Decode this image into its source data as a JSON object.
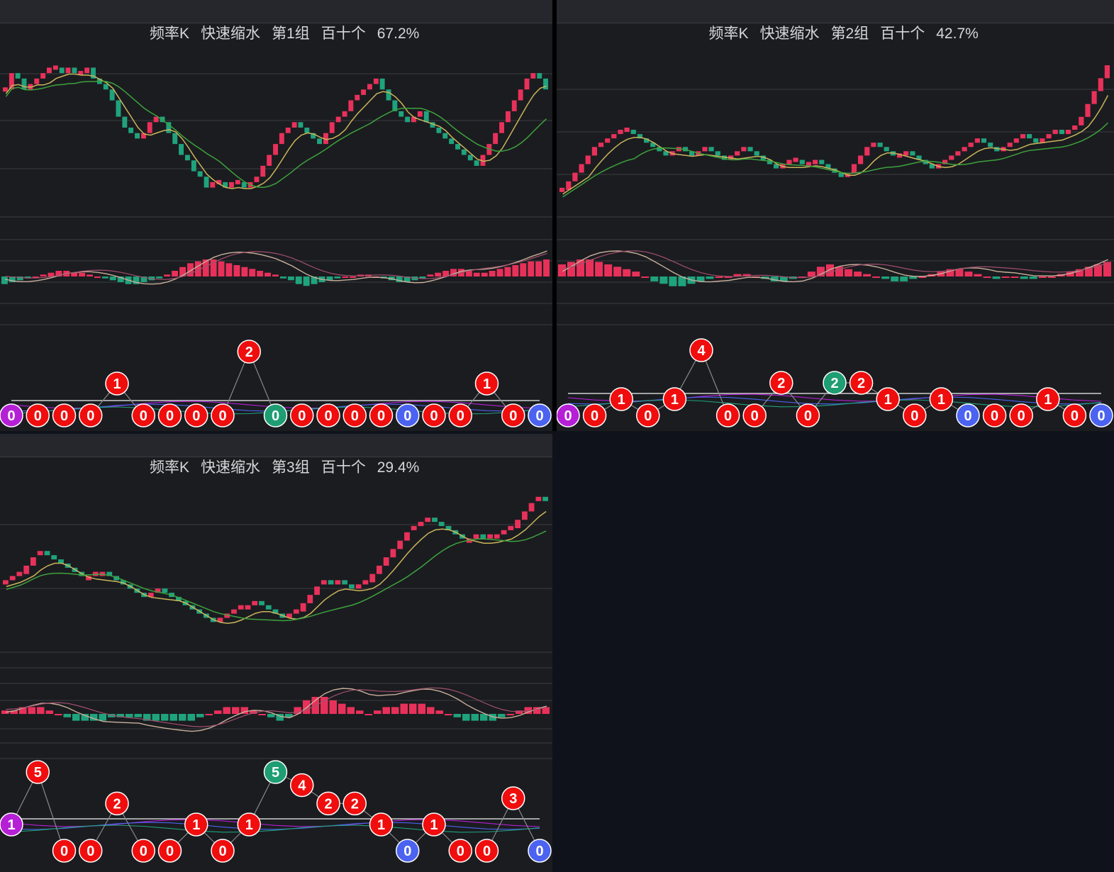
{
  "colors": {
    "background": "#0f121a",
    "panel": "#1b1c20",
    "up": "#e8315a",
    "down": "#1fa37d",
    "ma_short": "#c9b55a",
    "ma_long": "#3da23d",
    "diff": "#c8b09a",
    "dea": "#a0506e",
    "badge_red": "#f00d0d",
    "badge_green": "#1e9e72",
    "badge_purple": "#b51fd6",
    "badge_blue": "#4b63f0",
    "baseline": "#d0d0d0"
  },
  "panels": [
    {
      "id": "group1",
      "header": {
        "name": "频率K",
        "mode": "快速缩水",
        "group": "第1组",
        "digits": "百十个",
        "percent": "67.2%"
      },
      "chart_data": {
        "type": "candlestick+macd+badges",
        "close_series": [
          30,
          33,
          32,
          30,
          31,
          32,
          33,
          34,
          34,
          33,
          34,
          33,
          33,
          34,
          32,
          31,
          30,
          28,
          25,
          23,
          22,
          21,
          22,
          24,
          25,
          24,
          22,
          20,
          18,
          17,
          15,
          14,
          12,
          13,
          13,
          12,
          13,
          13,
          12,
          13,
          14,
          16,
          18,
          20,
          22,
          23,
          24,
          23,
          22,
          21,
          20,
          22,
          24,
          25,
          26,
          28,
          29,
          30,
          31,
          32,
          30,
          28,
          26,
          25,
          24,
          25,
          26,
          24,
          23,
          22,
          21,
          20,
          19,
          18,
          17,
          16,
          18,
          20,
          22,
          24,
          26,
          28,
          30,
          32,
          33,
          32,
          30
        ],
        "macd_hist": [
          -4,
          -3,
          -2,
          -1,
          0,
          1,
          2,
          3,
          3,
          2,
          2,
          1,
          0,
          -1,
          -2,
          -3,
          -4,
          -4,
          -3,
          -2,
          -1,
          1,
          3,
          5,
          7,
          8,
          9,
          9,
          8,
          7,
          6,
          5,
          4,
          3,
          2,
          1,
          -1,
          -2,
          -4,
          -5,
          -4,
          -3,
          -2,
          -1,
          0,
          0,
          1,
          1,
          0,
          -1,
          -2,
          -3,
          -3,
          -2,
          -1,
          1,
          2,
          3,
          4,
          4,
          3,
          2,
          2,
          3,
          4,
          5,
          6,
          7,
          8,
          8,
          9
        ],
        "badges": [
          {
            "value": "0",
            "color": "purple",
            "level": 0
          },
          {
            "value": "0",
            "color": "red",
            "level": 0
          },
          {
            "value": "0",
            "color": "red",
            "level": 0
          },
          {
            "value": "0",
            "color": "red",
            "level": 0
          },
          {
            "value": "1",
            "color": "red",
            "level": 1
          },
          {
            "value": "0",
            "color": "red",
            "level": 0
          },
          {
            "value": "0",
            "color": "red",
            "level": 0
          },
          {
            "value": "0",
            "color": "red",
            "level": 0
          },
          {
            "value": "0",
            "color": "red",
            "level": 0
          },
          {
            "value": "2",
            "color": "red",
            "level": 2
          },
          {
            "value": "0",
            "color": "green",
            "level": 0
          },
          {
            "value": "0",
            "color": "red",
            "level": 0
          },
          {
            "value": "0",
            "color": "red",
            "level": 0
          },
          {
            "value": "0",
            "color": "red",
            "level": 0
          },
          {
            "value": "0",
            "color": "red",
            "level": 0
          },
          {
            "value": "0",
            "color": "blue",
            "level": 0
          },
          {
            "value": "0",
            "color": "red",
            "level": 0
          },
          {
            "value": "0",
            "color": "red",
            "level": 0
          },
          {
            "value": "1",
            "color": "red",
            "level": 1
          },
          {
            "value": "0",
            "color": "red",
            "level": 0
          },
          {
            "value": "0",
            "color": "blue",
            "level": 0
          }
        ]
      }
    },
    {
      "id": "group2",
      "header": {
        "name": "频率K",
        "mode": "快速缩水",
        "group": "第2组",
        "digits": "百十个",
        "percent": "42.7%"
      },
      "chart_data": {
        "type": "candlestick+macd+badges",
        "close_series": [
          20,
          22,
          24,
          26,
          28,
          30,
          31,
          32,
          33,
          34,
          34,
          33,
          32,
          31,
          30,
          29,
          28,
          29,
          30,
          29,
          28,
          29,
          30,
          29,
          28,
          27,
          28,
          29,
          30,
          29,
          28,
          27,
          26,
          25,
          26,
          27,
          27,
          26,
          26,
          27,
          26,
          25,
          24,
          23,
          24,
          26,
          28,
          30,
          31,
          30,
          29,
          28,
          28,
          29,
          28,
          27,
          26,
          25,
          26,
          27,
          28,
          29,
          30,
          31,
          32,
          31,
          30,
          29,
          30,
          31,
          32,
          33,
          32,
          31,
          32,
          33,
          34,
          33,
          34,
          35,
          37,
          40,
          43,
          46,
          49
        ],
        "macd_hist": [
          5,
          6,
          7,
          7,
          6,
          5,
          4,
          3,
          2,
          0,
          -2,
          -3,
          -4,
          -4,
          -3,
          -2,
          -1,
          0,
          0,
          1,
          1,
          0,
          -1,
          -2,
          -2,
          -1,
          0,
          2,
          4,
          5,
          4,
          3,
          2,
          1,
          0,
          -1,
          -2,
          -2,
          -1,
          0,
          1,
          2,
          3,
          3,
          2,
          1,
          0,
          -1,
          0,
          0,
          -1,
          -1,
          0,
          0,
          1,
          2,
          3,
          4,
          5,
          6
        ],
        "badges": [
          {
            "value": "0",
            "color": "purple",
            "level": 0
          },
          {
            "value": "0",
            "color": "red",
            "level": 0
          },
          {
            "value": "1",
            "color": "red",
            "level": 0.5
          },
          {
            "value": "0",
            "color": "red",
            "level": 0
          },
          {
            "value": "1",
            "color": "red",
            "level": 0.5
          },
          {
            "value": "4",
            "color": "red",
            "level": 2
          },
          {
            "value": "0",
            "color": "red",
            "level": 0
          },
          {
            "value": "0",
            "color": "red",
            "level": 0
          },
          {
            "value": "2",
            "color": "red",
            "level": 1
          },
          {
            "value": "0",
            "color": "red",
            "level": 0
          },
          {
            "value": "2",
            "color": "green",
            "level": 1
          },
          {
            "value": "2",
            "color": "red",
            "level": 1
          },
          {
            "value": "1",
            "color": "red",
            "level": 0.5
          },
          {
            "value": "0",
            "color": "red",
            "level": 0
          },
          {
            "value": "1",
            "color": "red",
            "level": 0.5
          },
          {
            "value": "0",
            "color": "blue",
            "level": 0
          },
          {
            "value": "0",
            "color": "red",
            "level": 0
          },
          {
            "value": "0",
            "color": "red",
            "level": 0
          },
          {
            "value": "1",
            "color": "red",
            "level": 0.5
          },
          {
            "value": "0",
            "color": "red",
            "level": 0
          },
          {
            "value": "0",
            "color": "blue",
            "level": 0
          }
        ]
      }
    },
    {
      "id": "group3",
      "header": {
        "name": "频率K",
        "mode": "快速缩水",
        "group": "第3组",
        "digits": "百十个",
        "percent": "29.4%"
      },
      "chart_data": {
        "type": "candlestick+macd+badges",
        "close_series": [
          20,
          21,
          22,
          24,
          26,
          27,
          26,
          25,
          24,
          23,
          22,
          21,
          21,
          22,
          22,
          21,
          20,
          19,
          18,
          17,
          16,
          17,
          18,
          17,
          16,
          15,
          14,
          13,
          12,
          11,
          10,
          11,
          12,
          13,
          14,
          14,
          15,
          14,
          13,
          12,
          11,
          12,
          13,
          15,
          17,
          19,
          20,
          19,
          20,
          19,
          18,
          19,
          20,
          22,
          24,
          26,
          28,
          30,
          32,
          33,
          34,
          35,
          34,
          33,
          32,
          31,
          30,
          30,
          31,
          30,
          31,
          31,
          32,
          33,
          35,
          37,
          39,
          40,
          39
        ],
        "macd_hist": [
          1,
          1,
          2,
          2,
          2,
          1,
          0,
          -1,
          -2,
          -2,
          -2,
          -2,
          -1,
          -1,
          -1,
          -1,
          -2,
          -2,
          -2,
          -2,
          -2,
          -2,
          -1,
          0,
          1,
          2,
          2,
          2,
          1,
          0,
          -1,
          -2,
          -1,
          2,
          4,
          5,
          5,
          4,
          3,
          2,
          1,
          0,
          1,
          2,
          2,
          3,
          3,
          3,
          2,
          1,
          0,
          -1,
          -2,
          -2,
          -2,
          -2,
          -1,
          0,
          1,
          2,
          2,
          2
        ],
        "badges": [
          {
            "value": "1",
            "color": "purple",
            "level": 1
          },
          {
            "value": "5",
            "color": "red",
            "level": 3
          },
          {
            "value": "0",
            "color": "red",
            "level": 0
          },
          {
            "value": "0",
            "color": "red",
            "level": 0
          },
          {
            "value": "2",
            "color": "red",
            "level": 1.8
          },
          {
            "value": "0",
            "color": "red",
            "level": 0
          },
          {
            "value": "0",
            "color": "red",
            "level": 0
          },
          {
            "value": "1",
            "color": "red",
            "level": 1
          },
          {
            "value": "0",
            "color": "red",
            "level": 0
          },
          {
            "value": "1",
            "color": "red",
            "level": 1
          },
          {
            "value": "5",
            "color": "green",
            "level": 3
          },
          {
            "value": "4",
            "color": "red",
            "level": 2.5
          },
          {
            "value": "2",
            "color": "red",
            "level": 1.8
          },
          {
            "value": "2",
            "color": "red",
            "level": 1.8
          },
          {
            "value": "1",
            "color": "red",
            "level": 1
          },
          {
            "value": "0",
            "color": "blue",
            "level": 0
          },
          {
            "value": "1",
            "color": "red",
            "level": 1
          },
          {
            "value": "0",
            "color": "red",
            "level": 0
          },
          {
            "value": "0",
            "color": "red",
            "level": 0
          },
          {
            "value": "3",
            "color": "red",
            "level": 2
          },
          {
            "value": "0",
            "color": "blue",
            "level": 0
          }
        ]
      }
    }
  ]
}
